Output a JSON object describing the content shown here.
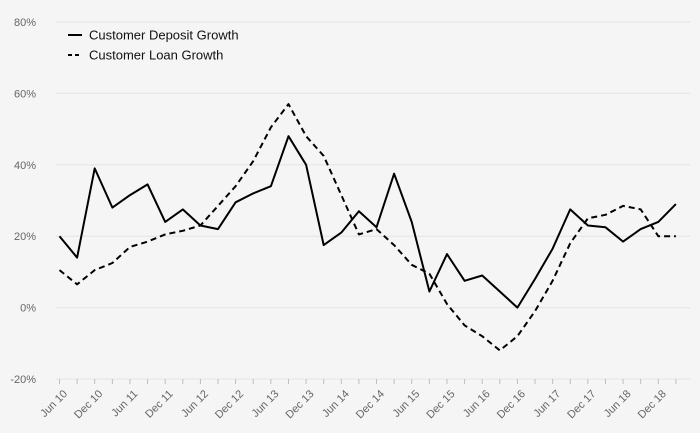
{
  "chart_data": {
    "type": "line",
    "title": "",
    "xlabel": "",
    "ylabel": "",
    "ylim": [
      -20,
      80
    ],
    "y_ticks": [
      -20,
      0,
      20,
      40,
      60,
      80
    ],
    "y_tick_labels": [
      "-20%",
      "0%",
      "20%",
      "40%",
      "60%",
      "80%"
    ],
    "grid": "horizontal",
    "legend_position": "top-left",
    "x": [
      "Jun 10",
      "Sep 10",
      "Dec 10",
      "Mar 11",
      "Jun 11",
      "Sep 11",
      "Dec 11",
      "Mar 12",
      "Jun 12",
      "Sep 12",
      "Dec 12",
      "Mar 13",
      "Jun 13",
      "Sep 13",
      "Dec 13",
      "Mar 14",
      "Jun 14",
      "Sep 14",
      "Dec 14",
      "Mar 15",
      "Jun 15",
      "Sep 15",
      "Dec 15",
      "Mar 16",
      "Jun 16",
      "Sep 16",
      "Dec 16",
      "Mar 17",
      "Jun 17",
      "Sep 17",
      "Dec 17",
      "Mar 18",
      "Jun 18",
      "Sep 18",
      "Dec 18",
      "Mar 19"
    ],
    "x_tick_labels": [
      "Jun 10",
      "Dec 10",
      "Jun 11",
      "Dec 11",
      "Jun 12",
      "Dec 12",
      "Jun 13",
      "Dec 13",
      "Jun 14",
      "Dec 14",
      "Jun 15",
      "Dec 15",
      "Jun 16",
      "Dec 16",
      "Jun 17",
      "Dec 17",
      "Jun 18",
      "Dec 18"
    ],
    "series": [
      {
        "name": "Customer Deposit Growth",
        "style": "solid",
        "color": "#000000",
        "values": [
          20,
          14,
          39,
          28,
          31.5,
          34.5,
          24,
          27.5,
          23,
          22,
          29.5,
          32,
          34,
          48,
          40,
          17.5,
          21,
          27,
          22.5,
          37.5,
          24,
          4.5,
          15,
          7.5,
          9,
          4.5,
          0,
          8,
          16.5,
          27.5,
          23,
          22.5,
          18.5,
          22,
          24,
          29
        ]
      },
      {
        "name": "Customer Loan Growth",
        "style": "dashed",
        "color": "#000000",
        "values": [
          10.5,
          6.5,
          10.5,
          12.5,
          17,
          18.5,
          20.5,
          21.5,
          23,
          28.5,
          34,
          41,
          50.5,
          57,
          48,
          42.5,
          31.5,
          20.5,
          22,
          17.5,
          12,
          9.5,
          1,
          -5,
          -8,
          -12,
          -8,
          -1,
          7.5,
          18,
          25,
          26,
          28.5,
          27.5,
          20,
          20
        ]
      }
    ]
  }
}
